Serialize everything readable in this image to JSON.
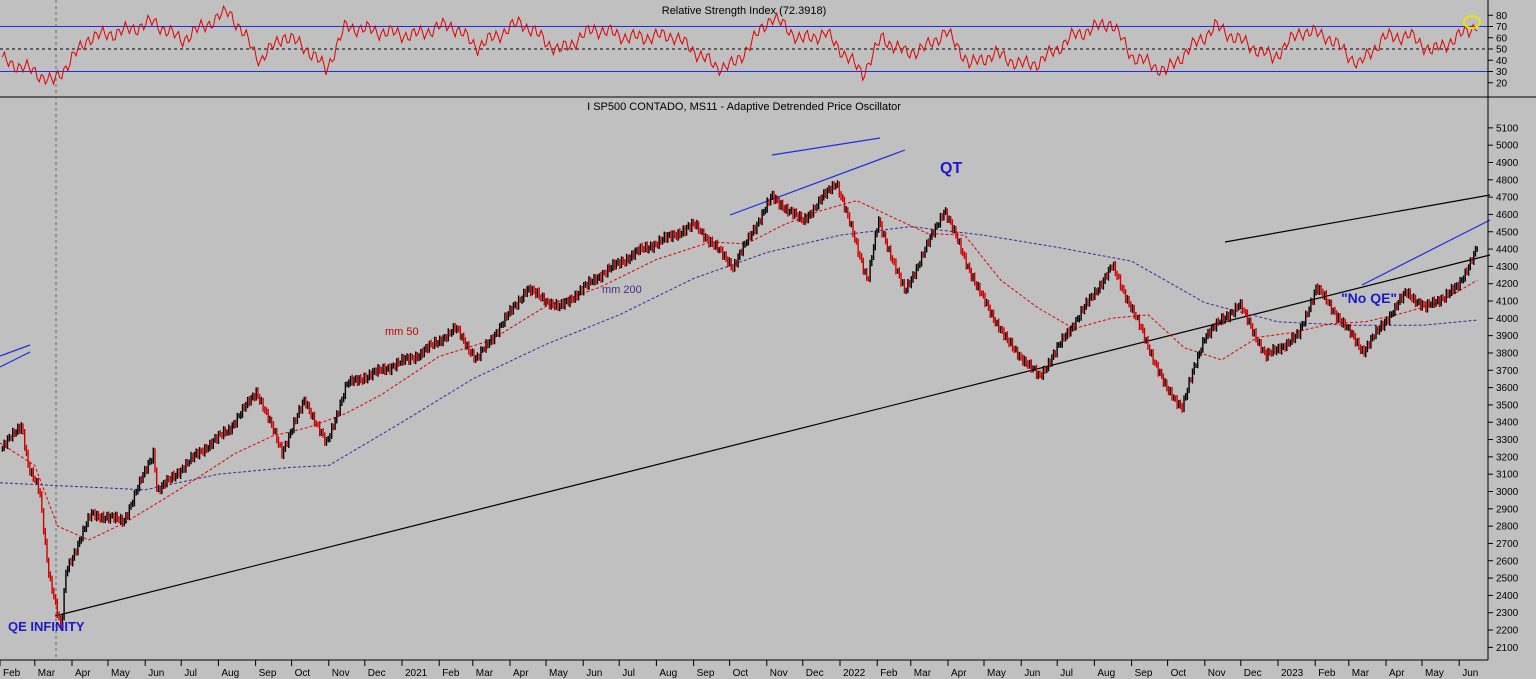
{
  "chart_data": [
    {
      "type": "line",
      "title": "Relative Strength Index (72.3918)",
      "ylim": [
        10,
        90
      ],
      "y_ticks": [
        20,
        30,
        40,
        50,
        60,
        70,
        80
      ],
      "reference_lines": [
        30,
        50,
        70
      ],
      "series": [
        {
          "color": "#e00000",
          "x": [
            "2020-02-03",
            "2020-03-01",
            "2020-03-16",
            "2020-04-15",
            "2020-05-15",
            "2020-06-08",
            "2020-07-01",
            "2020-08-10",
            "2020-08-20",
            "2020-09-05",
            "2020-09-24",
            "2020-10-12",
            "2020-10-30",
            "2020-11-15",
            "2020-12-10",
            "2021-01-10",
            "2021-02-10",
            "2021-03-05",
            "2021-04-10",
            "2021-05-12",
            "2021-06-10",
            "2021-07-10",
            "2021-08-15",
            "2021-09-20",
            "2021-10-05",
            "2021-11-05",
            "2021-11-30",
            "2021-12-20",
            "2022-01-20",
            "2022-02-05",
            "2022-02-25",
            "2022-03-15",
            "2022-03-30",
            "2022-04-20",
            "2022-05-10",
            "2022-06-01",
            "2022-06-16",
            "2022-07-15",
            "2022-08-15",
            "2022-09-01",
            "2022-09-30",
            "2022-10-15",
            "2022-11-10",
            "2022-12-05",
            "2022-12-28",
            "2023-01-20",
            "2023-02-10",
            "2023-03-10",
            "2023-03-30",
            "2023-04-20",
            "2023-05-10",
            "2023-05-30",
            "2023-06-16"
          ],
          "values": [
            40,
            30,
            20,
            60,
            66,
            74,
            58,
            84,
            66,
            40,
            62,
            52,
            32,
            70,
            66,
            62,
            72,
            52,
            74,
            48,
            68,
            60,
            62,
            34,
            36,
            79,
            58,
            64,
            28,
            60,
            46,
            52,
            66,
            36,
            46,
            36,
            38,
            62,
            74,
            44,
            30,
            46,
            70,
            55,
            42,
            66,
            62,
            36,
            60,
            62,
            48,
            60,
            72
          ]
        }
      ]
    },
    {
      "type": "line",
      "title": "I SP500 CONTADO, MS11 - Adaptive Detrended Price Oscillator",
      "ylim": [
        2050,
        5180
      ],
      "y_ticks": [
        2100,
        2200,
        2300,
        2400,
        2500,
        2600,
        2700,
        2800,
        2900,
        3000,
        3100,
        3200,
        3300,
        3400,
        3500,
        3600,
        3700,
        3800,
        3900,
        4000,
        4100,
        4200,
        4300,
        4400,
        4500,
        4600,
        4700,
        4800,
        4900,
        5000,
        5100
      ],
      "x_tick_labels": [
        "Feb",
        "Mar",
        "Apr",
        "May",
        "Jun",
        "Jul",
        "Aug",
        "Sep",
        "Oct",
        "Nov",
        "Dec",
        "2021",
        "Feb",
        "Mar",
        "Apr",
        "May",
        "Jun",
        "Jul",
        "Aug",
        "Sep",
        "Oct",
        "Nov",
        "Dec",
        "2022",
        "Feb",
        "Mar",
        "Apr",
        "May",
        "Jun",
        "Jul",
        "Aug",
        "Sep",
        "Oct",
        "Nov",
        "Dec",
        "2023",
        "Feb",
        "Mar",
        "Apr",
        "May",
        "Jun"
      ],
      "series": [
        {
          "name": "price",
          "color": "#000000",
          "x": [
            "2020-02-03",
            "2020-02-19",
            "2020-02-25",
            "2020-03-05",
            "2020-03-12",
            "2020-03-23",
            "2020-03-27",
            "2020-04-17",
            "2020-05-14",
            "2020-06-08",
            "2020-06-11",
            "2020-07-15",
            "2020-08-10",
            "2020-09-02",
            "2020-09-23",
            "2020-10-12",
            "2020-10-30",
            "2020-11-16",
            "2020-12-15",
            "2021-01-15",
            "2021-02-15",
            "2021-03-04",
            "2021-04-15",
            "2021-05-12",
            "2021-06-15",
            "2021-07-15",
            "2021-08-15",
            "2021-09-02",
            "2021-10-04",
            "2021-11-05",
            "2021-12-01",
            "2021-12-29",
            "2022-01-24",
            "2022-02-02",
            "2022-02-24",
            "2022-03-29",
            "2022-04-25",
            "2022-05-20",
            "2022-06-16",
            "2022-07-08",
            "2022-08-16",
            "2022-09-08",
            "2022-09-30",
            "2022-10-13",
            "2022-11-01",
            "2022-11-30",
            "2022-12-22",
            "2023-01-18",
            "2023-02-02",
            "2023-03-13",
            "2023-04-18",
            "2023-05-04",
            "2023-05-31",
            "2023-06-16"
          ],
          "values": [
            3250,
            3390,
            3130,
            3000,
            2560,
            2190,
            2540,
            2870,
            2830,
            3230,
            3000,
            3220,
            3360,
            3580,
            3230,
            3530,
            3270,
            3620,
            3700,
            3790,
            3940,
            3760,
            4170,
            4060,
            4250,
            4380,
            4480,
            4540,
            4300,
            4700,
            4560,
            4790,
            4220,
            4560,
            4150,
            4630,
            4180,
            3870,
            3660,
            3900,
            4300,
            3950,
            3590,
            3490,
            3900,
            4080,
            3780,
            3900,
            4180,
            3810,
            4150,
            4060,
            4180,
            4410
          ]
        },
        {
          "name": "mm 50",
          "color": "#e00000",
          "dashed": true,
          "x": [
            "2020-02-01",
            "2020-03-01",
            "2020-03-20",
            "2020-04-15",
            "2020-05-15",
            "2020-06-15",
            "2020-07-15",
            "2020-08-15",
            "2020-09-15",
            "2020-10-15",
            "2020-11-15",
            "2020-12-15",
            "2021-02-01",
            "2021-03-15",
            "2021-05-01",
            "2021-06-15",
            "2021-08-01",
            "2021-09-15",
            "2021-10-15",
            "2021-11-15",
            "2021-12-15",
            "2022-01-15",
            "2022-02-15",
            "2022-03-15",
            "2022-04-15",
            "2022-05-15",
            "2022-06-15",
            "2022-07-15",
            "2022-08-15",
            "2022-09-15",
            "2022-10-15",
            "2022-11-15",
            "2022-12-15",
            "2023-01-15",
            "2023-02-15",
            "2023-03-15",
            "2023-04-15",
            "2023-05-15",
            "2023-06-16"
          ],
          "values": [
            3280,
            3150,
            2800,
            2720,
            2820,
            2950,
            3080,
            3220,
            3320,
            3370,
            3450,
            3560,
            3780,
            3870,
            4070,
            4180,
            4340,
            4440,
            4430,
            4540,
            4620,
            4680,
            4580,
            4490,
            4480,
            4220,
            4060,
            3940,
            4000,
            4020,
            3830,
            3760,
            3890,
            3920,
            3970,
            3980,
            4030,
            4090,
            4220
          ]
        },
        {
          "name": "mm 200",
          "color": "#3b2a9c",
          "dashed": true,
          "x": [
            "2020-02-01",
            "2020-04-01",
            "2020-06-01",
            "2020-08-01",
            "2020-10-01",
            "2020-11-01",
            "2021-01-01",
            "2021-03-01",
            "2021-05-01",
            "2021-07-01",
            "2021-09-01",
            "2021-11-01",
            "2022-01-01",
            "2022-03-01",
            "2022-05-01",
            "2022-07-01",
            "2022-09-01",
            "2022-11-01",
            "2023-01-01",
            "2023-03-01",
            "2023-05-01",
            "2023-06-16"
          ],
          "values": [
            3050,
            3030,
            3010,
            3100,
            3140,
            3150,
            3400,
            3650,
            3850,
            4020,
            4230,
            4380,
            4480,
            4530,
            4480,
            4410,
            4330,
            4090,
            3980,
            3960,
            3960,
            3990
          ]
        }
      ],
      "annotations": {
        "qe_infinity": "QE INFINITY",
        "qt": "QT",
        "no_qe": "\"No QE\"",
        "mm50": "mm 50",
        "mm200": "mm 200"
      }
    }
  ]
}
